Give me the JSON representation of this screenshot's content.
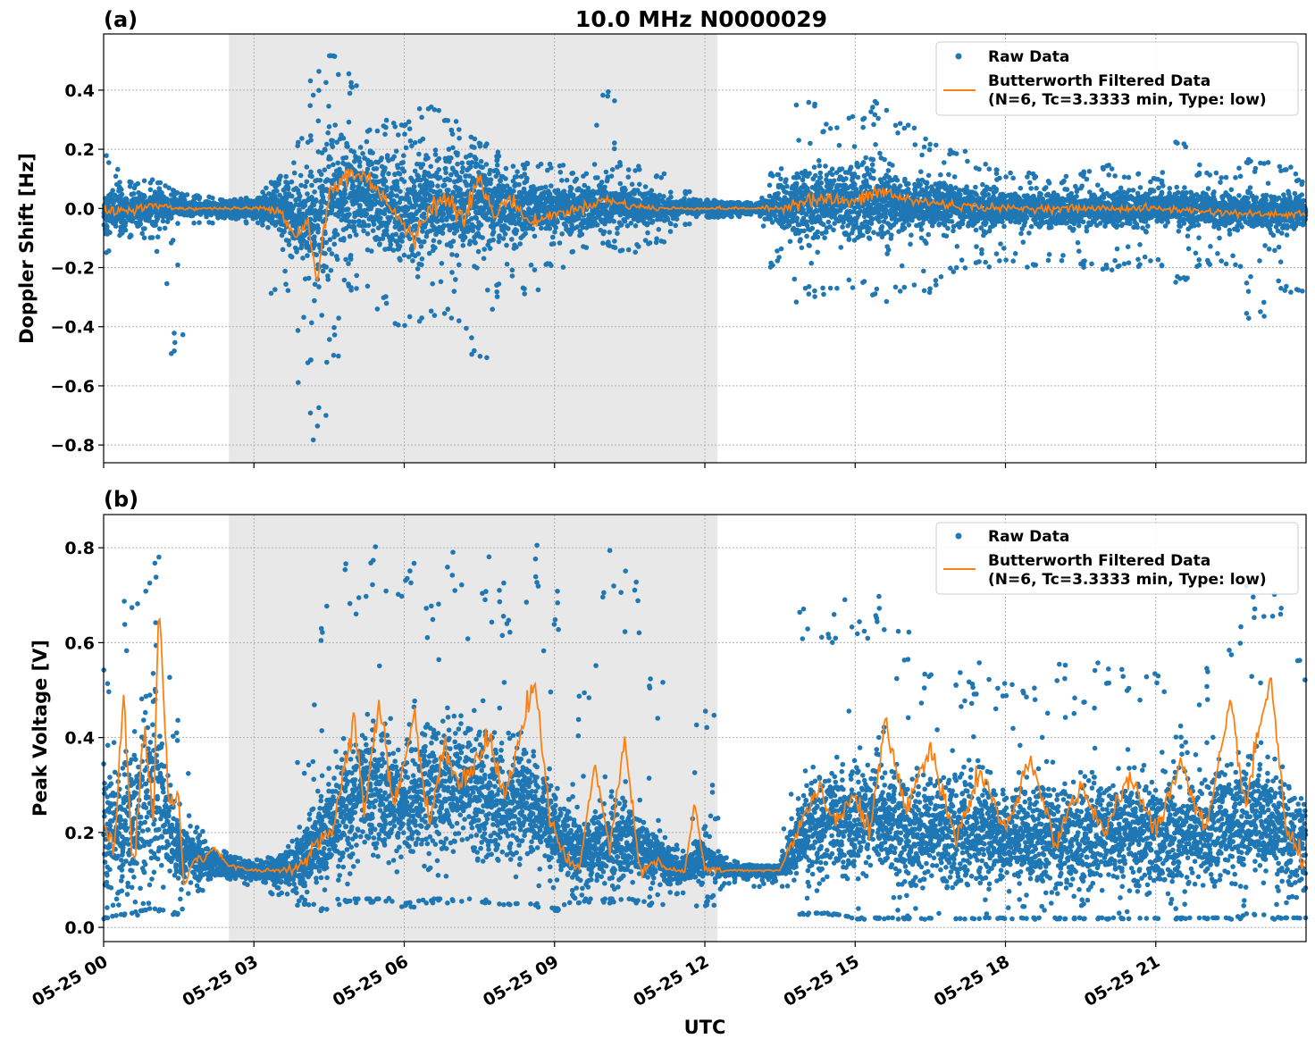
{
  "chart_data": {
    "type": "scatter",
    "title": "10.0 MHz N0000029",
    "xlabel": "UTC",
    "x_range_hours": [
      0,
      24
    ],
    "x_ticks": [
      {
        "hour": 0,
        "label": "05-25 00"
      },
      {
        "hour": 3,
        "label": "05-25 03"
      },
      {
        "hour": 6,
        "label": "05-25 06"
      },
      {
        "hour": 9,
        "label": "05-25 09"
      },
      {
        "hour": 12,
        "label": "05-25 12"
      },
      {
        "hour": 15,
        "label": "05-25 15"
      },
      {
        "hour": 18,
        "label": "05-25 18"
      },
      {
        "hour": 21,
        "label": "05-25 21"
      }
    ],
    "shaded_interval_hours": [
      2.5,
      12.25
    ],
    "grid": true,
    "colors": {
      "raw": "#1f77b4",
      "filtered": "#ff7f0e",
      "shade": "#e8e8e8"
    },
    "panels": [
      {
        "label": "(a)",
        "ylabel": "Doppler Shift [Hz]",
        "ylim": [
          -0.86,
          0.59
        ],
        "yticks": [
          {
            "v": 0.4,
            "label": "0.4"
          },
          {
            "v": 0.2,
            "label": "0.2"
          },
          {
            "v": 0.0,
            "label": "0.0"
          },
          {
            "v": -0.2,
            "label": "−0.2"
          },
          {
            "v": -0.4,
            "label": "−0.4"
          },
          {
            "v": -0.6,
            "label": "−0.6"
          },
          {
            "v": -0.8,
            "label": "−0.8"
          }
        ],
        "legend": {
          "position": "upper right",
          "entries": [
            {
              "marker": "dot",
              "text": [
                "Raw Data"
              ]
            },
            {
              "marker": "line",
              "text": [
                "Butterworth Filtered Data",
                "(N=6, Tc=3.3333 min, Type: low)"
              ]
            }
          ]
        },
        "series": [
          {
            "name": "Raw Data",
            "hour": [
              0,
              0.5,
              1,
              1.5,
              2,
              2.5,
              3,
              3.5,
              4,
              4.25,
              4.5,
              5,
              5.5,
              6,
              6.5,
              7,
              7.5,
              8,
              8.5,
              9,
              9.5,
              10,
              10.5,
              11,
              11.5,
              12,
              12.5,
              13,
              13.5,
              14,
              14.5,
              15,
              15.5,
              16,
              16.5,
              17,
              17.5,
              18,
              18.5,
              19,
              19.5,
              20,
              20.5,
              21,
              21.5,
              22,
              22.5,
              23,
              23.5,
              24
            ],
            "center": [
              -0.01,
              -0.005,
              0,
              0,
              0,
              0,
              0,
              0,
              -0.03,
              -0.05,
              0.05,
              0.05,
              0.03,
              -0.02,
              0.02,
              0.02,
              0.02,
              0.01,
              0,
              0,
              0,
              0.02,
              0.01,
              0,
              0,
              0,
              0,
              0,
              0,
              0.02,
              0.02,
              0.02,
              0.02,
              0.01,
              0.01,
              0.01,
              0,
              0,
              0,
              0,
              0,
              0,
              0,
              0,
              0,
              0,
              -0.01,
              -0.01,
              -0.01,
              -0.01
            ],
            "spread": [
              0.08,
              0.05,
              0.05,
              0.03,
              0.02,
              0.02,
              0.03,
              0.07,
              0.12,
              0.2,
              0.2,
              0.17,
              0.13,
              0.15,
              0.18,
              0.18,
              0.14,
              0.11,
              0.08,
              0.07,
              0.07,
              0.07,
              0.06,
              0.04,
              0.02,
              0.02,
              0.02,
              0.01,
              0.06,
              0.11,
              0.1,
              0.11,
              0.11,
              0.09,
              0.08,
              0.06,
              0.06,
              0.05,
              0.05,
              0.05,
              0.05,
              0.05,
              0.05,
              0.05,
              0.05,
              0.05,
              0.05,
              0.05,
              0.05,
              0.05
            ],
            "hi_envelope": [
              0.18,
              0.1,
              0.1,
              0.05,
              0.04,
              0.03,
              0.04,
              0.1,
              0.25,
              0.45,
              0.52,
              0.47,
              0.3,
              0.28,
              0.35,
              0.3,
              0.22,
              0.18,
              0.15,
              0.15,
              0.12,
              0.4,
              0.15,
              0.12,
              0.06,
              0.03,
              0.02,
              0.02,
              0.12,
              0.4,
              0.28,
              0.35,
              0.38,
              0.3,
              0.22,
              0.2,
              0.15,
              0.12,
              0.12,
              0.1,
              0.12,
              0.15,
              0.12,
              0.1,
              0.23,
              0.12,
              0.12,
              0.17,
              0.14,
              0.1
            ],
            "lo_envelope": [
              -0.15,
              -0.1,
              -0.1,
              -0.5,
              -0.05,
              -0.03,
              -0.05,
              -0.3,
              -0.6,
              -0.79,
              -0.5,
              -0.3,
              -0.35,
              -0.42,
              -0.4,
              -0.4,
              -0.55,
              -0.3,
              -0.3,
              -0.2,
              -0.15,
              -0.12,
              -0.15,
              -0.12,
              -0.06,
              -0.03,
              -0.03,
              -0.02,
              -0.2,
              -0.32,
              -0.3,
              -0.28,
              -0.32,
              -0.3,
              -0.3,
              -0.22,
              -0.2,
              -0.18,
              -0.2,
              -0.18,
              -0.2,
              -0.22,
              -0.2,
              -0.2,
              -0.25,
              -0.2,
              -0.2,
              -0.38,
              -0.3,
              -0.32
            ]
          },
          {
            "name": "Butterworth Filtered Data",
            "hour": [
              0,
              0.5,
              1,
              1.5,
              2,
              2.5,
              3,
              3.5,
              3.8,
              4.1,
              4.25,
              4.5,
              4.9,
              5.3,
              5.6,
              5.9,
              6.2,
              6.5,
              6.9,
              7.2,
              7.5,
              7.8,
              8.1,
              8.5,
              9,
              9.5,
              10,
              10.5,
              11,
              11.5,
              12,
              12.5,
              13,
              13.5,
              14,
              14.5,
              15,
              15.5,
              16,
              17,
              18,
              19,
              20,
              21,
              22,
              23,
              24
            ],
            "values": [
              -0.01,
              -0.005,
              0.01,
              0,
              0,
              0,
              0,
              0,
              -0.09,
              -0.05,
              -0.27,
              0.05,
              0.12,
              0.1,
              0.04,
              -0.04,
              -0.11,
              0.01,
              0.03,
              -0.02,
              0.1,
              -0.03,
              0.04,
              -0.05,
              -0.02,
              0,
              0.03,
              0.01,
              0,
              0,
              0,
              0,
              0,
              0,
              0.03,
              0.03,
              0.02,
              0.06,
              0.03,
              0.01,
              0,
              0,
              0,
              0,
              -0.01,
              -0.02,
              -0.02
            ]
          }
        ]
      },
      {
        "label": "(b)",
        "ylabel": "Peak Voltage [V]",
        "ylim": [
          -0.03,
          0.87
        ],
        "yticks": [
          {
            "v": 0.8,
            "label": "0.8"
          },
          {
            "v": 0.6,
            "label": "0.6"
          },
          {
            "v": 0.4,
            "label": "0.4"
          },
          {
            "v": 0.2,
            "label": "0.2"
          },
          {
            "v": 0.0,
            "label": "0.0"
          }
        ],
        "legend": {
          "position": "upper right",
          "entries": [
            {
              "marker": "dot",
              "text": [
                "Raw Data"
              ]
            },
            {
              "marker": "line",
              "text": [
                "Butterworth Filtered Data",
                "(N=6, Tc=3.3333 min, Type: low)"
              ]
            }
          ]
        },
        "series": [
          {
            "name": "Raw Data",
            "hour": [
              0,
              0.5,
              1,
              1.5,
              2,
              2.5,
              3,
              3.5,
              4,
              4.5,
              5,
              5.5,
              6,
              6.5,
              7,
              7.5,
              8,
              8.5,
              9,
              9.5,
              10,
              10.5,
              11,
              11.5,
              12,
              12.5,
              13,
              13.5,
              14,
              14.5,
              15,
              15.5,
              16,
              16.5,
              17,
              17.5,
              18,
              18.5,
              19,
              19.5,
              20,
              20.5,
              21,
              21.5,
              22,
              22.5,
              23,
              23.5,
              24
            ],
            "center": [
              0.18,
              0.22,
              0.3,
              0.16,
              0.14,
              0.13,
              0.12,
              0.12,
              0.14,
              0.2,
              0.27,
              0.3,
              0.25,
              0.3,
              0.3,
              0.28,
              0.25,
              0.27,
              0.2,
              0.15,
              0.18,
              0.18,
              0.15,
              0.12,
              0.15,
              0.12,
              0.12,
              0.12,
              0.2,
              0.22,
              0.23,
              0.24,
              0.2,
              0.2,
              0.2,
              0.2,
              0.19,
              0.19,
              0.19,
              0.19,
              0.2,
              0.2,
              0.2,
              0.2,
              0.21,
              0.22,
              0.23,
              0.2,
              0.16
            ],
            "spread": [
              0.12,
              0.14,
              0.18,
              0.06,
              0.03,
              0.02,
              0.015,
              0.02,
              0.06,
              0.1,
              0.12,
              0.12,
              0.1,
              0.12,
              0.12,
              0.12,
              0.1,
              0.12,
              0.08,
              0.06,
              0.07,
              0.07,
              0.05,
              0.02,
              0.04,
              0.01,
              0.01,
              0.01,
              0.09,
              0.1,
              0.1,
              0.1,
              0.1,
              0.1,
              0.1,
              0.1,
              0.1,
              0.1,
              0.1,
              0.1,
              0.1,
              0.1,
              0.1,
              0.1,
              0.1,
              0.1,
              0.11,
              0.1,
              0.1
            ],
            "hi_envelope": [
              0.6,
              0.74,
              0.79,
              0.45,
              0.22,
              0.15,
              0.14,
              0.16,
              0.35,
              0.69,
              0.77,
              0.82,
              0.82,
              0.75,
              0.8,
              0.81,
              0.73,
              0.83,
              0.71,
              0.5,
              0.81,
              0.77,
              0.55,
              0.18,
              0.46,
              0.14,
              0.13,
              0.13,
              0.68,
              0.7,
              0.7,
              0.72,
              0.64,
              0.55,
              0.55,
              0.57,
              0.53,
              0.55,
              0.57,
              0.5,
              0.6,
              0.56,
              0.57,
              0.45,
              0.55,
              0.64,
              0.74,
              0.72,
              0.6
            ],
            "lo_envelope": [
              0.02,
              0.03,
              0.04,
              0.03,
              0.09,
              0.11,
              0.1,
              0.08,
              0.05,
              0.04,
              0.06,
              0.06,
              0.05,
              0.06,
              0.06,
              0.06,
              0.05,
              0.05,
              0.04,
              0.06,
              0.06,
              0.06,
              0.05,
              0.08,
              0.05,
              0.1,
              0.1,
              0.1,
              0.03,
              0.03,
              0.02,
              0.02,
              0.02,
              0.02,
              0.02,
              0.02,
              0.02,
              0.02,
              0.02,
              0.02,
              0.02,
              0.02,
              0.02,
              0.02,
              0.02,
              0.02,
              0.03,
              0.02,
              0.02
            ]
          },
          {
            "name": "Butterworth Filtered Data",
            "hour": [
              0,
              0.2,
              0.4,
              0.6,
              0.8,
              1,
              1.1,
              1.3,
              1.5,
              1.6,
              1.8,
              2,
              2.2,
              2.5,
              3,
              3.5,
              4,
              4.3,
              4.6,
              5,
              5.2,
              5.5,
              5.8,
              6.2,
              6.5,
              6.8,
              7.1,
              7.4,
              7.7,
              8,
              8.3,
              8.6,
              8.9,
              9.2,
              9.5,
              9.8,
              10.1,
              10.4,
              10.7,
              11,
              11.3,
              11.6,
              11.8,
              12,
              12.3,
              12.8,
              13.5,
              14,
              14.3,
              14.6,
              15,
              15.3,
              15.6,
              16,
              16.5,
              17,
              17.5,
              18,
              18.5,
              19,
              19.5,
              20,
              20.5,
              21,
              21.5,
              22,
              22.5,
              22.8,
              23,
              23.3,
              23.6,
              24
            ],
            "values": [
              0.23,
              0.14,
              0.5,
              0.1,
              0.43,
              0.2,
              0.72,
              0.25,
              0.29,
              0.08,
              0.15,
              0.14,
              0.17,
              0.13,
              0.12,
              0.12,
              0.13,
              0.18,
              0.22,
              0.44,
              0.25,
              0.48,
              0.25,
              0.45,
              0.22,
              0.38,
              0.3,
              0.35,
              0.4,
              0.27,
              0.4,
              0.53,
              0.23,
              0.15,
              0.12,
              0.35,
              0.17,
              0.4,
              0.12,
              0.14,
              0.12,
              0.12,
              0.26,
              0.12,
              0.12,
              0.12,
              0.12,
              0.24,
              0.3,
              0.22,
              0.28,
              0.2,
              0.43,
              0.25,
              0.38,
              0.18,
              0.33,
              0.2,
              0.35,
              0.18,
              0.3,
              0.2,
              0.32,
              0.2,
              0.35,
              0.2,
              0.47,
              0.25,
              0.38,
              0.53,
              0.2,
              0.13
            ]
          }
        ]
      }
    ]
  }
}
